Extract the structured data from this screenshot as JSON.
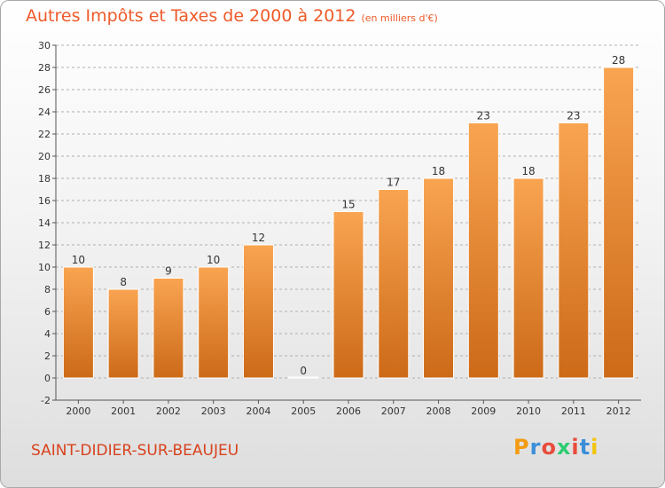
{
  "title": "Autres Impôts et Taxes de 2000 à 2012",
  "unit_note": "(en milliers d'€)",
  "location": "SAINT-DIDIER-SUR-BEAUJEU",
  "logo": {
    "text": "Proxiti",
    "letter_colors": [
      "#f39c12",
      "#3b8ed8",
      "#e74c3c",
      "#2ecc71",
      "#e74c3c",
      "#3b8ed8",
      "#f1c40f"
    ]
  },
  "colors": {
    "bar_top": "#f9a451",
    "bar_bottom": "#cc6a18",
    "title": "#ee5a2a",
    "location": "#d8421d"
  },
  "chart_data": {
    "type": "bar",
    "title": "Autres Impôts et Taxes de 2000 à 2012",
    "subtitle": "(en milliers d'€)",
    "xlabel": "",
    "ylabel": "",
    "categories": [
      "2000",
      "2001",
      "2002",
      "2003",
      "2004",
      "2005",
      "2006",
      "2007",
      "2008",
      "2009",
      "2010",
      "2011",
      "2012"
    ],
    "values": [
      10,
      8,
      9,
      10,
      12,
      0,
      15,
      17,
      18,
      23,
      18,
      23,
      28
    ],
    "ylim": [
      -2,
      30
    ],
    "yticks": [
      -2,
      0,
      2,
      4,
      6,
      8,
      10,
      12,
      14,
      16,
      18,
      20,
      22,
      24,
      26,
      28,
      30
    ],
    "grid": "horizontal-dashed",
    "legend": "none"
  }
}
